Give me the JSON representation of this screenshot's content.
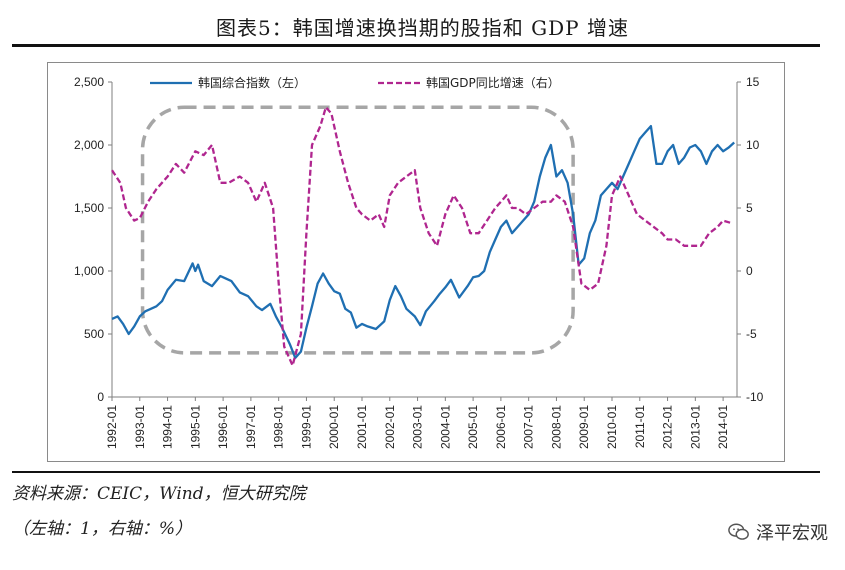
{
  "title": "图表5：韩国增速换挡期的股指和 GDP 增速",
  "source_note": "资料来源：CEIC，Wind，恒大研究院",
  "axis_note": "（左轴：1，右轴：%）",
  "watermark": "泽平宏观",
  "colors": {
    "kospi": "#1f6fb2",
    "gdp": "#b0268f",
    "highlight_box": "#a6a6a6"
  },
  "chart_data": {
    "type": "line",
    "title": "韩国增速换挡期的股指和 GDP 增速",
    "x_labels": [
      "1992-01",
      "1993-01",
      "1994-01",
      "1995-01",
      "1996-01",
      "1997-01",
      "1998-01",
      "1999-01",
      "2000-01",
      "2001-01",
      "2002-01",
      "2003-01",
      "2004-01",
      "2005-01",
      "2006-01",
      "2007-01",
      "2008-01",
      "2009-01",
      "2010-01",
      "2011-01",
      "2012-01",
      "2013-01",
      "2014-01"
    ],
    "x_range": [
      1992.0,
      2014.5
    ],
    "y_left": {
      "range": [
        0,
        2500
      ],
      "ticks": [
        0,
        500,
        1000,
        1500,
        2000,
        2500
      ],
      "tick_labels": [
        "0",
        "500",
        "1,000",
        "1,500",
        "2,000",
        "2,500"
      ]
    },
    "y_right": {
      "range": [
        -10,
        15
      ],
      "ticks": [
        -10,
        -5,
        0,
        5,
        10,
        15
      ],
      "tick_labels": [
        "-10",
        "-5",
        "0",
        "5",
        "10",
        "15"
      ]
    },
    "series": [
      {
        "name": "韩国综合指数（左）",
        "axis": "left",
        "style": "solid",
        "points": [
          [
            1992.0,
            620
          ],
          [
            1992.2,
            640
          ],
          [
            1992.4,
            580
          ],
          [
            1992.6,
            500
          ],
          [
            1992.8,
            560
          ],
          [
            1993.0,
            640
          ],
          [
            1993.2,
            680
          ],
          [
            1993.4,
            700
          ],
          [
            1993.6,
            720
          ],
          [
            1993.8,
            760
          ],
          [
            1994.0,
            850
          ],
          [
            1994.3,
            930
          ],
          [
            1994.6,
            920
          ],
          [
            1994.9,
            1060
          ],
          [
            1995.0,
            1000
          ],
          [
            1995.1,
            1050
          ],
          [
            1995.3,
            920
          ],
          [
            1995.6,
            880
          ],
          [
            1995.9,
            960
          ],
          [
            1996.1,
            940
          ],
          [
            1996.3,
            920
          ],
          [
            1996.6,
            830
          ],
          [
            1996.9,
            800
          ],
          [
            1997.2,
            720
          ],
          [
            1997.4,
            690
          ],
          [
            1997.7,
            740
          ],
          [
            1997.9,
            640
          ],
          [
            1998.1,
            560
          ],
          [
            1998.4,
            420
          ],
          [
            1998.6,
            310
          ],
          [
            1998.8,
            360
          ],
          [
            1999.0,
            550
          ],
          [
            1999.2,
            720
          ],
          [
            1999.4,
            900
          ],
          [
            1999.6,
            980
          ],
          [
            1999.8,
            900
          ],
          [
            2000.0,
            840
          ],
          [
            2000.2,
            820
          ],
          [
            2000.4,
            700
          ],
          [
            2000.6,
            670
          ],
          [
            2000.8,
            550
          ],
          [
            2001.0,
            580
          ],
          [
            2001.2,
            560
          ],
          [
            2001.5,
            540
          ],
          [
            2001.8,
            600
          ],
          [
            2002.0,
            770
          ],
          [
            2002.2,
            880
          ],
          [
            2002.4,
            800
          ],
          [
            2002.6,
            700
          ],
          [
            2002.9,
            640
          ],
          [
            2003.1,
            570
          ],
          [
            2003.3,
            680
          ],
          [
            2003.6,
            760
          ],
          [
            2003.8,
            820
          ],
          [
            2004.0,
            870
          ],
          [
            2004.2,
            930
          ],
          [
            2004.5,
            790
          ],
          [
            2004.8,
            880
          ],
          [
            2005.0,
            950
          ],
          [
            2005.2,
            960
          ],
          [
            2005.4,
            1000
          ],
          [
            2005.6,
            1150
          ],
          [
            2005.8,
            1250
          ],
          [
            2006.0,
            1350
          ],
          [
            2006.2,
            1400
          ],
          [
            2006.4,
            1300
          ],
          [
            2006.6,
            1350
          ],
          [
            2006.8,
            1400
          ],
          [
            2007.0,
            1450
          ],
          [
            2007.2,
            1550
          ],
          [
            2007.4,
            1750
          ],
          [
            2007.6,
            1900
          ],
          [
            2007.8,
            2000
          ],
          [
            2008.0,
            1750
          ],
          [
            2008.2,
            1800
          ],
          [
            2008.4,
            1700
          ],
          [
            2008.6,
            1450
          ],
          [
            2008.8,
            1050
          ],
          [
            2009.0,
            1100
          ],
          [
            2009.2,
            1300
          ],
          [
            2009.4,
            1400
          ],
          [
            2009.6,
            1600
          ],
          [
            2009.8,
            1650
          ],
          [
            2010.0,
            1700
          ],
          [
            2010.2,
            1650
          ],
          [
            2010.4,
            1750
          ],
          [
            2010.6,
            1850
          ],
          [
            2010.8,
            1950
          ],
          [
            2011.0,
            2050
          ],
          [
            2011.2,
            2100
          ],
          [
            2011.4,
            2150
          ],
          [
            2011.6,
            1850
          ],
          [
            2011.8,
            1850
          ],
          [
            2012.0,
            1950
          ],
          [
            2012.2,
            2000
          ],
          [
            2012.4,
            1850
          ],
          [
            2012.6,
            1900
          ],
          [
            2012.8,
            1980
          ],
          [
            2013.0,
            2000
          ],
          [
            2013.2,
            1950
          ],
          [
            2013.4,
            1850
          ],
          [
            2013.6,
            1950
          ],
          [
            2013.8,
            2000
          ],
          [
            2014.0,
            1950
          ],
          [
            2014.2,
            1980
          ],
          [
            2014.4,
            2020
          ]
        ]
      },
      {
        "name": "韩国GDP同比增速（右）",
        "axis": "right",
        "style": "dashed",
        "points": [
          [
            1992.0,
            8
          ],
          [
            1992.3,
            7
          ],
          [
            1992.5,
            5
          ],
          [
            1992.8,
            4
          ],
          [
            1993.0,
            4.2
          ],
          [
            1993.3,
            5.5
          ],
          [
            1993.6,
            6.5
          ],
          [
            1994.0,
            7.5
          ],
          [
            1994.3,
            8.5
          ],
          [
            1994.6,
            7.8
          ],
          [
            1995.0,
            9.5
          ],
          [
            1995.3,
            9.2
          ],
          [
            1995.6,
            10
          ],
          [
            1995.9,
            7
          ],
          [
            1996.2,
            7
          ],
          [
            1996.6,
            7.5
          ],
          [
            1996.9,
            7
          ],
          [
            1997.2,
            5.5
          ],
          [
            1997.5,
            7
          ],
          [
            1997.8,
            5
          ],
          [
            1998.0,
            -1
          ],
          [
            1998.2,
            -6
          ],
          [
            1998.5,
            -7.5
          ],
          [
            1998.8,
            -5
          ],
          [
            1999.0,
            3
          ],
          [
            1999.2,
            10
          ],
          [
            1999.5,
            11.5
          ],
          [
            1999.7,
            13
          ],
          [
            1999.9,
            12.5
          ],
          [
            2000.2,
            9.5
          ],
          [
            2000.5,
            7
          ],
          [
            2000.8,
            5
          ],
          [
            2001.0,
            4.5
          ],
          [
            2001.3,
            4
          ],
          [
            2001.6,
            4.5
          ],
          [
            2001.8,
            3.5
          ],
          [
            2002.0,
            6
          ],
          [
            2002.3,
            7
          ],
          [
            2002.6,
            7.5
          ],
          [
            2002.9,
            8
          ],
          [
            2003.1,
            5
          ],
          [
            2003.4,
            3
          ],
          [
            2003.7,
            2
          ],
          [
            2004.0,
            4.5
          ],
          [
            2004.3,
            6
          ],
          [
            2004.6,
            5
          ],
          [
            2004.9,
            3
          ],
          [
            2005.2,
            3
          ],
          [
            2005.5,
            4
          ],
          [
            2005.8,
            5
          ],
          [
            2006.0,
            5.5
          ],
          [
            2006.2,
            6
          ],
          [
            2006.4,
            5
          ],
          [
            2006.6,
            5
          ],
          [
            2006.9,
            4.5
          ],
          [
            2007.2,
            5
          ],
          [
            2007.5,
            5.5
          ],
          [
            2007.8,
            5.5
          ],
          [
            2008.0,
            6
          ],
          [
            2008.3,
            5.5
          ],
          [
            2008.6,
            3.5
          ],
          [
            2008.9,
            -1
          ],
          [
            2009.2,
            -1.5
          ],
          [
            2009.5,
            -1
          ],
          [
            2009.8,
            2
          ],
          [
            2010.0,
            6
          ],
          [
            2010.3,
            7.5
          ],
          [
            2010.6,
            6
          ],
          [
            2010.9,
            4.5
          ],
          [
            2011.2,
            4
          ],
          [
            2011.5,
            3.5
          ],
          [
            2011.8,
            3
          ],
          [
            2012.0,
            2.5
          ],
          [
            2012.3,
            2.5
          ],
          [
            2012.6,
            2
          ],
          [
            2012.9,
            2
          ],
          [
            2013.2,
            2
          ],
          [
            2013.5,
            3
          ],
          [
            2013.8,
            3.5
          ],
          [
            2014.0,
            4
          ],
          [
            2014.3,
            3.8
          ]
        ]
      }
    ],
    "highlight_period": {
      "x_range": [
        1993.1,
        2008.6
      ],
      "y_left_range": [
        350,
        2300
      ],
      "style": "dashed rounded box"
    },
    "legend_position": "top"
  }
}
